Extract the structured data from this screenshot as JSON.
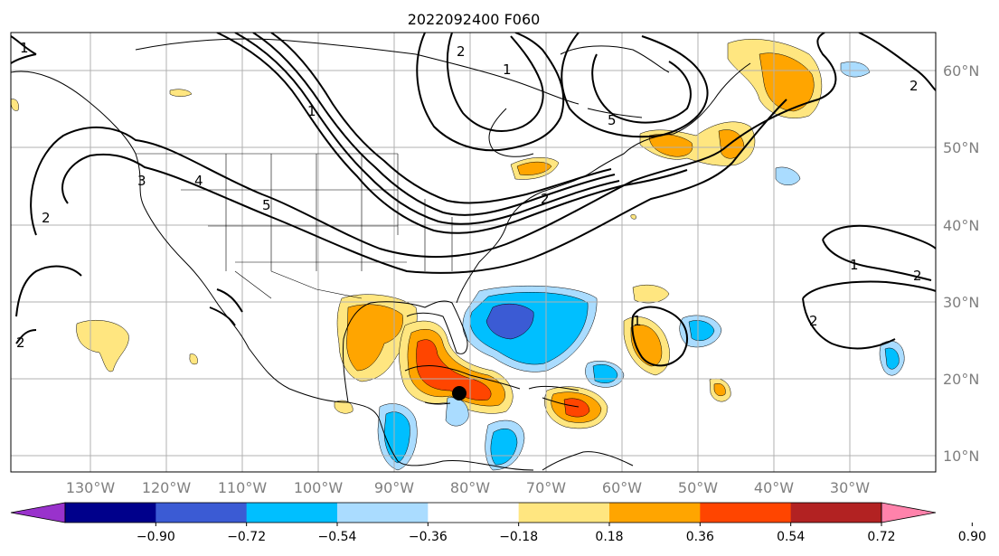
{
  "title": "2022092400 F060",
  "map": {
    "lat_labels": [
      "60°N",
      "50°N",
      "40°N",
      "30°N",
      "20°N",
      "10°N"
    ],
    "lon_labels": [
      "130°W",
      "120°W",
      "110°W",
      "100°W",
      "90°W",
      "80°W",
      "70°W",
      "60°W",
      "50°W",
      "40°W",
      "30°W"
    ],
    "storm_center": {
      "lon": -80.7,
      "lat": 18.0
    },
    "contour_labels": [
      "1",
      "2",
      "3",
      "4",
      "5",
      "1",
      "2",
      "1",
      "2",
      "1",
      "2",
      "2",
      "1",
      "2",
      "5",
      "2"
    ]
  },
  "colorbar": {
    "tick_labels": [
      "−0.90",
      "−0.72",
      "−0.54",
      "−0.36",
      "−0.18",
      "0.18",
      "0.36",
      "0.54",
      "0.72",
      "0.90"
    ],
    "colors": [
      "#9932cc",
      "#00008b",
      "#3b5bd4",
      "#00bfff",
      "#aadcff",
      "#ffffff",
      "#ffe680",
      "#ffa500",
      "#ff4500",
      "#b22222",
      "#ff82ab"
    ]
  }
}
